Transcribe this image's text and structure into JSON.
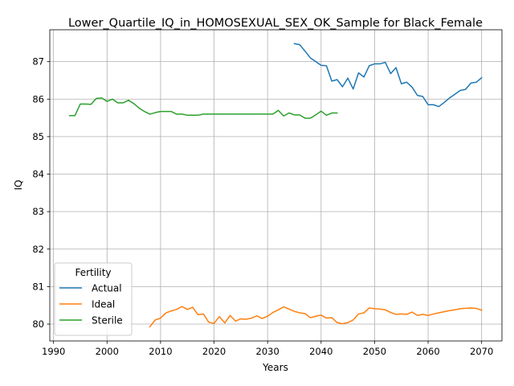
{
  "chart_data": {
    "type": "line",
    "title": "Lower_Quartile_IQ_in_HOMOSEXUAL_SEX_OK_Sample for Black_Female",
    "xlabel": "Years",
    "ylabel": "IQ",
    "xlim": [
      1989.3,
      2073.8
    ],
    "ylim": [
      79.55,
      87.85
    ],
    "xticks": [
      1990,
      2000,
      2010,
      2020,
      2030,
      2040,
      2050,
      2060,
      2070
    ],
    "yticks": [
      80,
      81,
      82,
      83,
      84,
      85,
      86,
      87
    ],
    "grid": true,
    "legend": {
      "title": "Fertility",
      "position": "lower-left"
    },
    "series": [
      {
        "name": "Actual",
        "color": "#1f77b4",
        "x": [
          2035,
          2036,
          2037,
          2038,
          2039,
          2040,
          2041,
          2042,
          2043,
          2044,
          2045,
          2046,
          2047,
          2048,
          2049,
          2050,
          2051,
          2052,
          2053,
          2054,
          2055,
          2056,
          2057,
          2058,
          2059,
          2060,
          2061,
          2062,
          2063,
          2064,
          2065,
          2066,
          2067,
          2068,
          2069,
          2070
        ],
        "y": [
          87.48,
          87.45,
          87.28,
          87.1,
          87.0,
          86.9,
          86.89,
          86.48,
          86.52,
          86.33,
          86.56,
          86.27,
          86.7,
          86.59,
          86.89,
          86.94,
          86.94,
          86.98,
          86.68,
          86.84,
          86.41,
          86.45,
          86.32,
          86.1,
          86.07,
          85.85,
          85.85,
          85.8,
          85.91,
          86.03,
          86.13,
          86.23,
          86.26,
          86.43,
          86.45,
          86.57
        ]
      },
      {
        "name": "Ideal",
        "color": "#ff7f0e",
        "x": [
          2008,
          2009,
          2010,
          2011,
          2012,
          2013,
          2014,
          2015,
          2016,
          2017,
          2018,
          2019,
          2020,
          2021,
          2022,
          2023,
          2024,
          2025,
          2026,
          2027,
          2028,
          2029,
          2030,
          2031,
          2032,
          2033,
          2034,
          2035,
          2036,
          2037,
          2038,
          2039,
          2040,
          2041,
          2042,
          2043,
          2044,
          2045,
          2046,
          2047,
          2048,
          2049,
          2050,
          2051,
          2052,
          2053,
          2054,
          2055,
          2056,
          2057,
          2058,
          2059,
          2060,
          2061,
          2062,
          2063,
          2064,
          2065,
          2066,
          2067,
          2068,
          2069,
          2070
        ],
        "y": [
          79.93,
          80.11,
          80.16,
          80.3,
          80.35,
          80.39,
          80.47,
          80.39,
          80.45,
          80.25,
          80.27,
          80.05,
          80.02,
          80.2,
          80.03,
          80.23,
          80.08,
          80.14,
          80.13,
          80.16,
          80.22,
          80.15,
          80.21,
          80.31,
          80.38,
          80.46,
          80.4,
          80.34,
          80.3,
          80.28,
          80.17,
          80.21,
          80.24,
          80.16,
          80.17,
          80.04,
          80.01,
          80.04,
          80.11,
          80.27,
          80.3,
          80.43,
          80.41,
          80.4,
          80.38,
          80.31,
          80.26,
          80.27,
          80.26,
          80.32,
          80.23,
          80.26,
          80.23,
          80.27,
          80.3,
          80.33,
          80.36,
          80.38,
          80.41,
          80.42,
          80.43,
          80.42,
          80.37
        ]
      },
      {
        "name": "Sterile",
        "color": "#2ca02c",
        "x": [
          1993,
          1994,
          1995,
          1996,
          1997,
          1998,
          1999,
          2000,
          2001,
          2002,
          2003,
          2004,
          2005,
          2006,
          2007,
          2008,
          2009,
          2010,
          2011,
          2012,
          2013,
          2014,
          2015,
          2016,
          2017,
          2018,
          2019,
          2020,
          2021,
          2022,
          2023,
          2024,
          2025,
          2026,
          2027,
          2028,
          2029,
          2030,
          2031,
          2032,
          2033,
          2034,
          2035,
          2036,
          2037,
          2038,
          2039,
          2040,
          2041,
          2042,
          2043
        ],
        "y": [
          85.56,
          85.56,
          85.87,
          85.87,
          85.86,
          86.02,
          86.03,
          85.94,
          86.0,
          85.9,
          85.9,
          85.97,
          85.88,
          85.76,
          85.67,
          85.6,
          85.64,
          85.67,
          85.67,
          85.67,
          85.6,
          85.6,
          85.57,
          85.57,
          85.57,
          85.6,
          85.6,
          85.6,
          85.6,
          85.6,
          85.6,
          85.6,
          85.6,
          85.6,
          85.6,
          85.6,
          85.6,
          85.6,
          85.6,
          85.7,
          85.55,
          85.63,
          85.58,
          85.58,
          85.49,
          85.49,
          85.58,
          85.68,
          85.57,
          85.63,
          85.63
        ]
      }
    ]
  }
}
